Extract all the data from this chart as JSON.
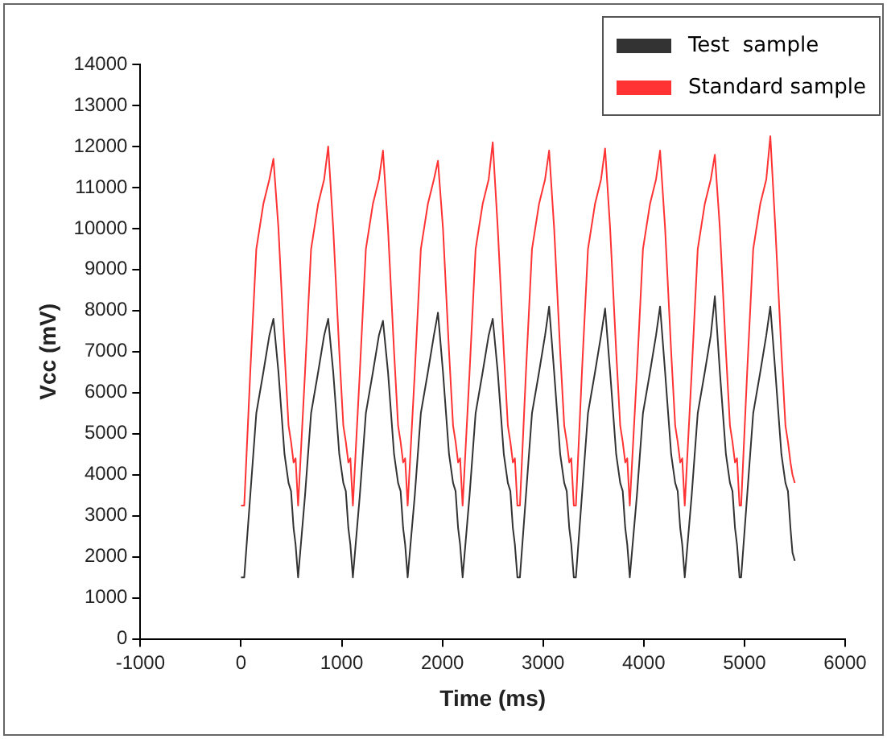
{
  "chart_data": {
    "type": "line",
    "xlabel": "Time (ms)",
    "ylabel": "Vcc (mV)",
    "xlim": [
      -1000,
      6000
    ],
    "xticks": [
      -1000,
      0,
      1000,
      2000,
      3000,
      4000,
      5000,
      6000
    ],
    "ylim": [
      0,
      14000
    ],
    "yticks": [
      0,
      1000,
      2000,
      3000,
      4000,
      5000,
      6000,
      7000,
      8000,
      9000,
      10000,
      11000,
      12000,
      13000,
      14000
    ],
    "grid": false,
    "legend": "top right",
    "marker": "none",
    "line_style": "solid",
    "x": [
      0,
      32,
      92,
      152,
      222,
      282,
      322,
      372,
      432,
      472,
      497,
      522,
      542,
      567,
      576,
      636,
      696,
      766,
      826,
      866,
      916,
      976,
      1016,
      1041,
      1066,
      1086,
      1111,
      1120,
      1180,
      1240,
      1310,
      1370,
      1410,
      1460,
      1520,
      1560,
      1585,
      1610,
      1630,
      1655,
      1666,
      1726,
      1786,
      1856,
      1916,
      1956,
      2006,
      2066,
      2106,
      2131,
      2156,
      2176,
      2201,
      2210,
      2270,
      2330,
      2400,
      2460,
      2500,
      2550,
      2610,
      2650,
      2675,
      2700,
      2720,
      2745,
      2770,
      2830,
      2890,
      2960,
      3020,
      3060,
      3110,
      3170,
      3210,
      3235,
      3260,
      3280,
      3305,
      3326,
      3386,
      3446,
      3516,
      3576,
      3616,
      3666,
      3726,
      3766,
      3791,
      3816,
      3836,
      3861,
      3872,
      3932,
      3992,
      4062,
      4122,
      4162,
      4212,
      4272,
      4312,
      4337,
      4362,
      4382,
      4407,
      4416,
      4476,
      4536,
      4606,
      4666,
      4706,
      4756,
      4816,
      4856,
      4881,
      4906,
      4926,
      4951,
      4967,
      5027,
      5087,
      5157,
      5217,
      5257,
      5307,
      5367,
      5407,
      5432,
      5457,
      5477,
      5500
    ],
    "series": [
      {
        "name": "Test  sample",
        "color": "#333333",
        "values": [
          1500,
          1500,
          3500,
          5500,
          6500,
          7400,
          7800,
          6500,
          4500,
          3800,
          3600,
          2700,
          2300,
          1500,
          1500,
          3500,
          5500,
          6500,
          7400,
          7800,
          6500,
          4500,
          3800,
          3600,
          2700,
          2300,
          1500,
          1500,
          3500,
          5500,
          6500,
          7400,
          7750,
          6500,
          4500,
          3800,
          3600,
          2700,
          2300,
          1500,
          1500,
          3500,
          5500,
          6500,
          7400,
          7950,
          6500,
          4500,
          3800,
          3600,
          2700,
          2300,
          1500,
          1500,
          3500,
          5500,
          6500,
          7400,
          7800,
          6500,
          4500,
          3800,
          3600,
          2700,
          2300,
          1500,
          1500,
          3500,
          5500,
          6500,
          7400,
          8100,
          6500,
          4500,
          3800,
          3600,
          2700,
          2300,
          1500,
          1500,
          3500,
          5500,
          6500,
          7400,
          8050,
          6500,
          4500,
          3800,
          3600,
          2700,
          2300,
          1500,
          1500,
          3500,
          5500,
          6500,
          7400,
          8100,
          6500,
          4500,
          3800,
          3600,
          2700,
          2300,
          1500,
          1500,
          3500,
          5500,
          6500,
          7400,
          8350,
          6500,
          4500,
          3800,
          3600,
          2700,
          2300,
          1500,
          1500,
          3500,
          5500,
          6500,
          7400,
          8100,
          6500,
          4500,
          3800,
          3600,
          2700,
          2100,
          1900
        ]
      },
      {
        "name": "Standard sample",
        "color": "#ff3333",
        "values": [
          3250,
          3250,
          6500,
          9500,
          10600,
          11200,
          11700,
          10000,
          7000,
          5200,
          4800,
          4300,
          4400,
          3250,
          3250,
          6500,
          9500,
          10600,
          11200,
          12000,
          10000,
          7000,
          5200,
          4800,
          4300,
          4400,
          3250,
          3250,
          6500,
          9500,
          10600,
          11200,
          11900,
          10000,
          7000,
          5200,
          4800,
          4300,
          4400,
          3250,
          3250,
          6500,
          9500,
          10600,
          11200,
          11650,
          10000,
          7000,
          5200,
          4800,
          4300,
          4400,
          3250,
          3250,
          6500,
          9500,
          10600,
          11200,
          12100,
          10000,
          7000,
          5200,
          4800,
          4300,
          4400,
          3250,
          3250,
          6500,
          9500,
          10600,
          11200,
          11900,
          10000,
          7000,
          5200,
          4800,
          4300,
          4400,
          3250,
          3250,
          6500,
          9500,
          10600,
          11200,
          11950,
          10000,
          7000,
          5200,
          4800,
          4300,
          4400,
          3250,
          3250,
          6500,
          9500,
          10600,
          11200,
          11900,
          10000,
          7000,
          5200,
          4800,
          4300,
          4400,
          3250,
          3250,
          6500,
          9500,
          10600,
          11200,
          11800,
          10000,
          7000,
          5200,
          4800,
          4300,
          4400,
          3250,
          3250,
          6500,
          9500,
          10600,
          11200,
          12250,
          10000,
          7000,
          5200,
          4800,
          4300,
          4000,
          3800
        ]
      }
    ]
  }
}
